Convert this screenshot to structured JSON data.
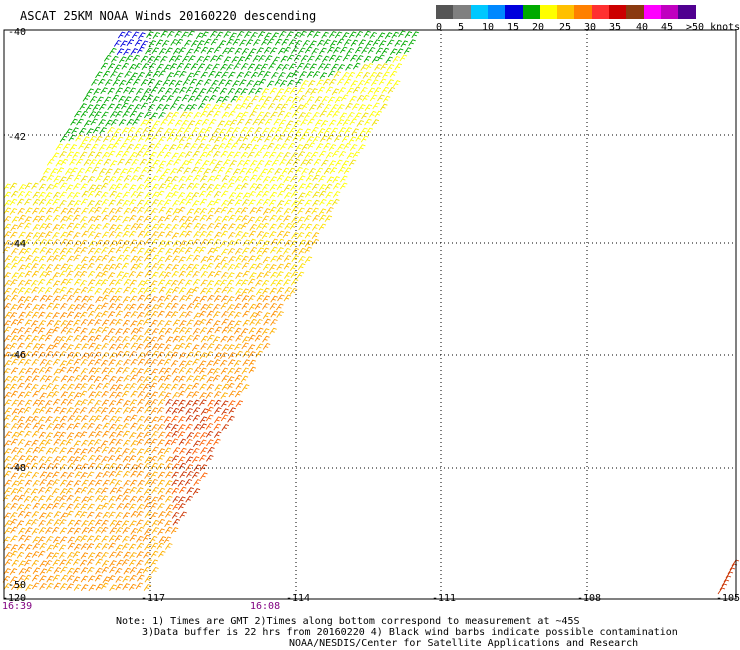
{
  "title": "ASCAT 25KM NOAA Winds 20160220 descending",
  "legend": {
    "colors": [
      "#555555",
      "#808080",
      "#00c8ff",
      "#0088ff",
      "#0000dd",
      "#00aa00",
      "#ffff00",
      "#ffc000",
      "#ff8000",
      "#ff3030",
      "#cc0000",
      "#8a3a10",
      "#ff00ff",
      "#c000c0",
      "#500090"
    ],
    "labels": [
      "0",
      "5",
      "10",
      "15",
      "20",
      "25",
      "30",
      "35",
      "40",
      "45",
      ">50 knots"
    ]
  },
  "axes": {
    "lon_ticks": [
      "-120",
      "-117",
      "-114",
      "-111",
      "-108",
      "-105"
    ],
    "lat_ticks": [
      "-40",
      "-42",
      "-44",
      "-46",
      "-48",
      "-50"
    ],
    "lon_range": [
      -120,
      -105
    ],
    "lat_range": [
      -50,
      -40
    ]
  },
  "times": [
    "16:39",
    "16:08"
  ],
  "notes": [
    "Note: 1) Times are GMT 2)Times along bottom correspond to measurement at ~45S",
    "3)Data buffer is 22 hrs from 20160220 4) Black wind barbs indicate possible contamination",
    "NOAA/NESDIS/Center for Satellite Applications and Research"
  ]
}
